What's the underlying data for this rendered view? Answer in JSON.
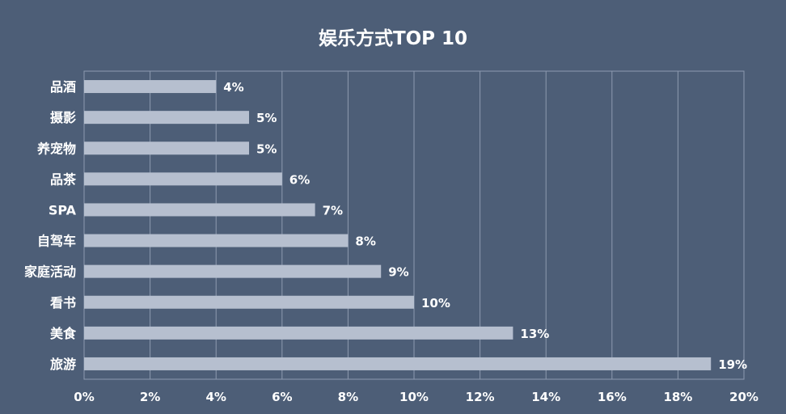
{
  "chart_data": {
    "type": "bar",
    "orientation": "horizontal",
    "title": "娱乐方式TOP 10",
    "categories": [
      "品酒",
      "摄影",
      "养宠物",
      "品茶",
      "SPA",
      "自驾车",
      "家庭活动",
      "看书",
      "美食",
      "旅游"
    ],
    "values": [
      4,
      5,
      5,
      6,
      7,
      8,
      9,
      10,
      13,
      19
    ],
    "value_labels": [
      "4%",
      "5%",
      "5%",
      "6%",
      "7%",
      "8%",
      "9%",
      "10%",
      "13%",
      "19%"
    ],
    "xlim": [
      0,
      20
    ],
    "x_ticks": [
      "0%",
      "2%",
      "4%",
      "6%",
      "8%",
      "10%",
      "12%",
      "14%",
      "16%",
      "18%",
      "20%"
    ],
    "grid": true,
    "colors": {
      "background": "#4d5e77",
      "bar": "#b6bfcf",
      "grid": "#8d9ab0",
      "text": "#ffffff"
    }
  }
}
